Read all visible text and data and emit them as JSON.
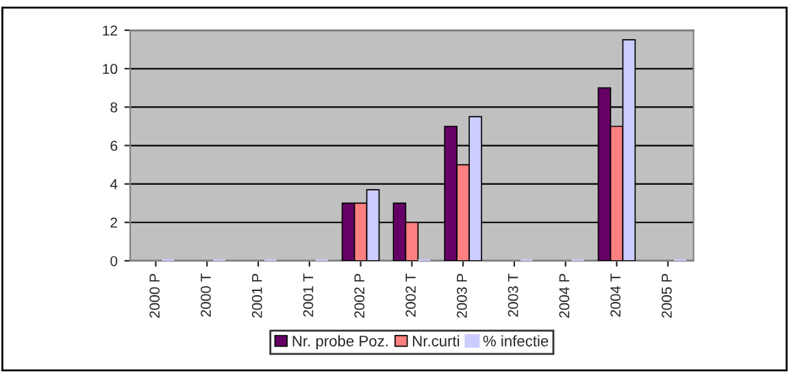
{
  "chart_data": {
    "type": "bar",
    "categories": [
      "2000 P",
      "2000 T",
      "2001 P",
      "2001 T",
      "2002 P",
      "2002 T",
      "2003 P",
      "2003 T",
      "2004 P",
      "2004 T",
      "2005 P"
    ],
    "series": [
      {
        "name": "Nr. probe Poz.",
        "color": "#660066",
        "values": [
          null,
          null,
          null,
          null,
          3,
          3,
          7,
          null,
          null,
          9,
          null
        ]
      },
      {
        "name": "Nr.curti",
        "color": "#ff8080",
        "values": [
          null,
          null,
          null,
          null,
          3,
          2,
          5,
          null,
          null,
          7,
          null
        ]
      },
      {
        "name": "% infectie",
        "color": "#ccccff",
        "values": [
          0,
          0,
          0,
          0,
          3.7,
          0,
          7.5,
          0,
          0,
          11.5,
          0
        ]
      }
    ],
    "ylim": [
      0,
      12
    ],
    "yticks": [
      0,
      2,
      4,
      6,
      8,
      10,
      12
    ],
    "grid": "y",
    "legend": "bottom"
  }
}
